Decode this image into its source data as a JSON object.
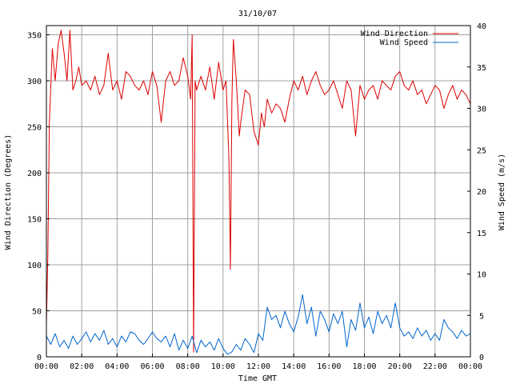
{
  "chart_data": {
    "type": "line",
    "title": "31/10/07",
    "xlabel": "Time GMT",
    "ylabel": "Wind Direction (Degrees)",
    "y2label": "Wind Speed (m/s)",
    "xlim": [
      "00:00",
      "24:00"
    ],
    "ylim": [
      0,
      360
    ],
    "y2lim": [
      0,
      40
    ],
    "x_ticks": [
      "00:00",
      "02:00",
      "04:00",
      "06:00",
      "08:00",
      "10:00",
      "12:00",
      "14:00",
      "16:00",
      "18:00",
      "20:00",
      "22:00",
      "00:00"
    ],
    "y_ticks": [
      0,
      50,
      100,
      150,
      200,
      250,
      300,
      350
    ],
    "y2_ticks": [
      0,
      5,
      10,
      15,
      20,
      25,
      30,
      35,
      40
    ],
    "grid": true,
    "legend_position": "top-right",
    "series": [
      {
        "name": "Wind Direction",
        "axis": "left",
        "color": "#dd0000",
        "x": [
          "00:00",
          "00:05",
          "00:10",
          "00:20",
          "00:30",
          "00:40",
          "00:50",
          "01:00",
          "01:10",
          "01:20",
          "01:30",
          "01:40",
          "01:50",
          "02:00",
          "02:15",
          "02:30",
          "02:45",
          "03:00",
          "03:15",
          "03:30",
          "03:45",
          "04:00",
          "04:15",
          "04:30",
          "04:45",
          "05:00",
          "05:15",
          "05:30",
          "05:45",
          "06:00",
          "06:15",
          "06:30",
          "06:45",
          "07:00",
          "07:15",
          "07:30",
          "07:45",
          "08:00",
          "08:10",
          "08:15",
          "08:20",
          "08:25",
          "08:30",
          "08:45",
          "09:00",
          "09:15",
          "09:30",
          "09:45",
          "10:00",
          "10:10",
          "10:20",
          "10:25",
          "10:30",
          "10:35",
          "10:45",
          "10:55",
          "11:00",
          "11:15",
          "11:30",
          "11:45",
          "12:00",
          "12:10",
          "12:20",
          "12:30",
          "12:45",
          "13:00",
          "13:15",
          "13:30",
          "13:45",
          "14:00",
          "14:15",
          "14:30",
          "14:45",
          "15:00",
          "15:15",
          "15:30",
          "15:45",
          "16:00",
          "16:15",
          "16:30",
          "16:45",
          "17:00",
          "17:15",
          "17:30",
          "17:45",
          "18:00",
          "18:15",
          "18:30",
          "18:45",
          "19:00",
          "19:15",
          "19:30",
          "19:45",
          "20:00",
          "20:15",
          "20:30",
          "20:45",
          "21:00",
          "21:15",
          "21:30",
          "21:45",
          "22:00",
          "22:15",
          "22:30",
          "22:45",
          "23:00",
          "23:15",
          "23:30",
          "23:45",
          "24:00"
        ],
        "values": [
          35,
          110,
          255,
          335,
          300,
          340,
          355,
          330,
          300,
          355,
          290,
          300,
          315,
          295,
          300,
          290,
          305,
          285,
          295,
          330,
          290,
          300,
          280,
          310,
          305,
          295,
          290,
          300,
          285,
          310,
          295,
          255,
          300,
          310,
          295,
          300,
          325,
          305,
          280,
          350,
          5,
          300,
          290,
          305,
          290,
          315,
          280,
          320,
          290,
          300,
          215,
          95,
          280,
          345,
          300,
          240,
          255,
          290,
          285,
          245,
          230,
          265,
          250,
          280,
          265,
          275,
          270,
          255,
          280,
          300,
          290,
          305,
          285,
          300,
          310,
          295,
          285,
          290,
          300,
          285,
          270,
          300,
          290,
          240,
          295,
          280,
          290,
          295,
          280,
          300,
          295,
          290,
          305,
          310,
          295,
          290,
          300,
          285,
          290,
          275,
          285,
          295,
          290,
          270,
          285,
          295,
          280,
          290,
          285,
          275
        ]
      },
      {
        "name": "Wind Speed",
        "axis": "right",
        "color": "#0066cc",
        "x": [
          "00:00",
          "00:15",
          "00:30",
          "00:45",
          "01:00",
          "01:15",
          "01:30",
          "01:45",
          "02:00",
          "02:15",
          "02:30",
          "02:45",
          "03:00",
          "03:15",
          "03:30",
          "03:45",
          "04:00",
          "04:15",
          "04:30",
          "04:45",
          "05:00",
          "05:15",
          "05:30",
          "05:45",
          "06:00",
          "06:15",
          "06:30",
          "06:45",
          "07:00",
          "07:15",
          "07:30",
          "07:45",
          "08:00",
          "08:15",
          "08:30",
          "08:45",
          "09:00",
          "09:15",
          "09:30",
          "09:45",
          "10:00",
          "10:15",
          "10:30",
          "10:45",
          "11:00",
          "11:15",
          "11:30",
          "11:45",
          "12:00",
          "12:15",
          "12:30",
          "12:45",
          "13:00",
          "13:15",
          "13:30",
          "13:45",
          "14:00",
          "14:15",
          "14:30",
          "14:45",
          "15:00",
          "15:15",
          "15:30",
          "15:45",
          "16:00",
          "16:15",
          "16:30",
          "16:45",
          "17:00",
          "17:15",
          "17:30",
          "17:45",
          "18:00",
          "18:15",
          "18:30",
          "18:45",
          "19:00",
          "19:15",
          "19:30",
          "19:45",
          "20:00",
          "20:15",
          "20:30",
          "20:45",
          "21:00",
          "21:15",
          "21:30",
          "21:45",
          "22:00",
          "22:15",
          "22:30",
          "22:45",
          "23:00",
          "23:15",
          "23:30",
          "23:45",
          "24:00"
        ],
        "values": [
          2.5,
          1.5,
          2.8,
          1.2,
          2.0,
          1.0,
          2.5,
          1.5,
          2.2,
          3.0,
          1.8,
          2.8,
          2.0,
          3.2,
          1.5,
          2.2,
          1.2,
          2.5,
          1.8,
          3.0,
          2.8,
          2.0,
          1.5,
          2.2,
          3.0,
          2.2,
          1.8,
          2.5,
          1.2,
          2.8,
          0.8,
          2.0,
          1.0,
          2.5,
          0.5,
          2.0,
          1.2,
          1.8,
          0.8,
          2.2,
          1.0,
          0.3,
          0.6,
          1.5,
          0.8,
          2.2,
          1.5,
          0.5,
          2.8,
          2.0,
          6.0,
          4.5,
          5.0,
          3.5,
          5.5,
          4.0,
          3.0,
          4.8,
          7.5,
          4.0,
          6.0,
          2.5,
          5.5,
          4.5,
          3.0,
          5.2,
          4.0,
          5.5,
          1.2,
          4.5,
          3.2,
          6.5,
          3.5,
          4.8,
          2.8,
          5.5,
          4.0,
          5.0,
          3.5,
          6.5,
          3.5,
          2.5,
          3.0,
          2.2,
          3.5,
          2.5,
          3.2,
          2.0,
          2.8,
          2.0,
          4.5,
          3.5,
          3.0,
          2.2,
          3.2,
          2.5,
          2.8
        ]
      }
    ]
  }
}
